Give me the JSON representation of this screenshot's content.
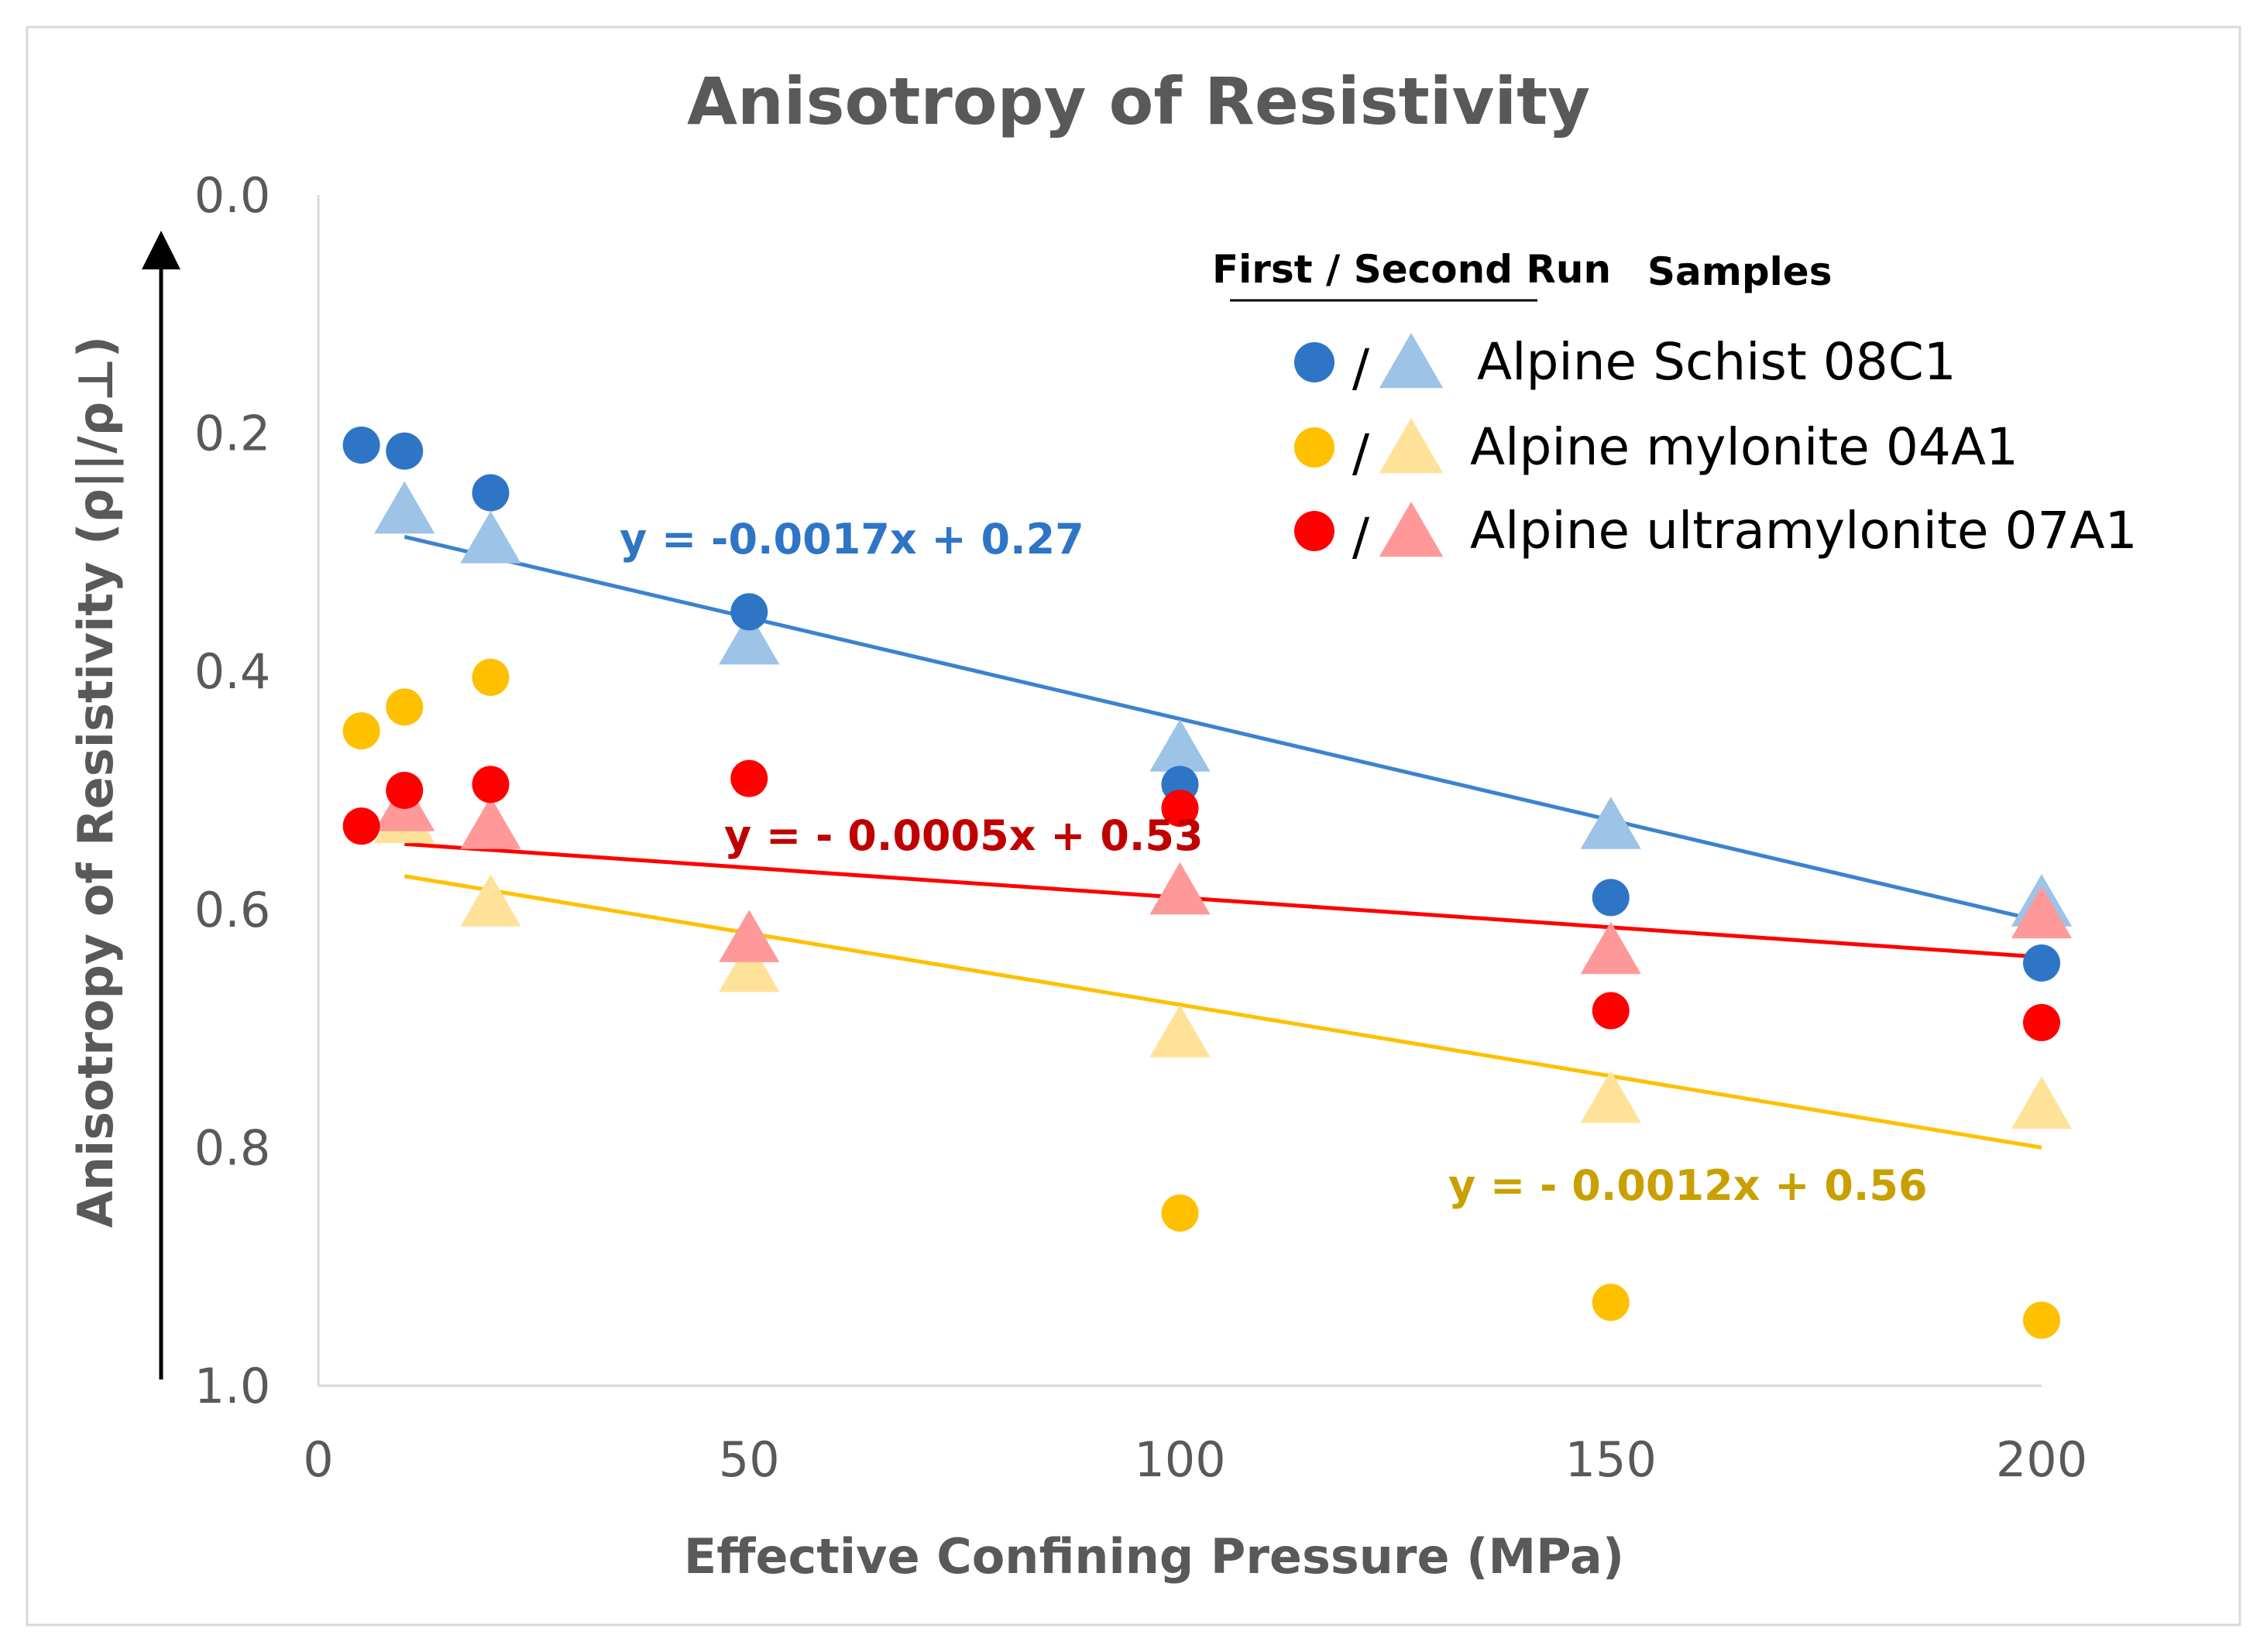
{
  "chart_data": {
    "type": "scatter",
    "title": "Anisotropy of Resistivity",
    "xlabel": "Effective Confining Pressure (MPa)",
    "ylabel": "Anisotropy of Resistivity (ρ||/ρ⊥)",
    "xlim": [
      0,
      200
    ],
    "ylim": [
      0.0,
      1.0
    ],
    "y_inverted": true,
    "x_ticks": [
      "0",
      "50",
      "100",
      "150",
      "200"
    ],
    "y_ticks": [
      "0.0",
      "0.2",
      "0.4",
      "0.6",
      "0.8",
      "1.0"
    ],
    "legend": {
      "header_runs": "First / Second Run",
      "header_samples": "Samples",
      "separator": "/"
    },
    "series": [
      {
        "name": "Alpine Schist 08C1",
        "first_color": "#2E75C6",
        "second_color": "#9DC3E6",
        "line_color": "#3C82CF",
        "first_run": {
          "x": [
            5,
            10,
            20,
            50,
            100,
            150,
            200
          ],
          "y": [
            0.21,
            0.215,
            0.25,
            0.35,
            0.495,
            0.59,
            0.645
          ]
        },
        "second_run": {
          "x": [
            10,
            20,
            50,
            100,
            150,
            200
          ],
          "y": [
            0.265,
            0.29,
            0.375,
            0.465,
            0.53,
            0.595
          ]
        },
        "trendline": {
          "x": [
            10,
            200
          ],
          "y": [
            0.287,
            0.61
          ]
        },
        "equation": "y = -0.0017x + 0.27",
        "equation_color": "#2E75C6"
      },
      {
        "name": "Alpine mylonite 04A1",
        "first_color": "#FFC000",
        "second_color": "#FFE29A",
        "line_color": "#FFC000",
        "first_run": {
          "x": [
            5,
            10,
            20,
            100,
            150,
            200
          ],
          "y": [
            0.45,
            0.43,
            0.405,
            0.855,
            0.93,
            0.945
          ]
        },
        "second_run": {
          "x": [
            10,
            20,
            50,
            100,
            150,
            200
          ],
          "y": [
            0.525,
            0.595,
            0.65,
            0.705,
            0.76,
            0.765
          ]
        },
        "trendline": {
          "x": [
            10,
            200
          ],
          "y": [
            0.572,
            0.8
          ]
        },
        "equation": "y = - 0.0012x + 0.56",
        "equation_color": "#C9A000"
      },
      {
        "name": "Alpine ultramylonite 07A1",
        "first_color": "#FF0000",
        "second_color": "#FF9999",
        "line_color": "#FF0000",
        "first_run": {
          "x": [
            5,
            10,
            20,
            50,
            100,
            150,
            200
          ],
          "y": [
            0.53,
            0.5,
            0.495,
            0.49,
            0.515,
            0.685,
            0.695
          ]
        },
        "second_run": {
          "x": [
            10,
            20,
            50,
            100,
            150,
            200
          ],
          "y": [
            0.515,
            0.53,
            0.625,
            0.585,
            0.635,
            0.605
          ]
        },
        "trendline": {
          "x": [
            10,
            200
          ],
          "y": [
            0.545,
            0.64
          ]
        },
        "equation": "y = - 0.0005x + 0.53",
        "equation_color": "#C00000"
      }
    ]
  }
}
